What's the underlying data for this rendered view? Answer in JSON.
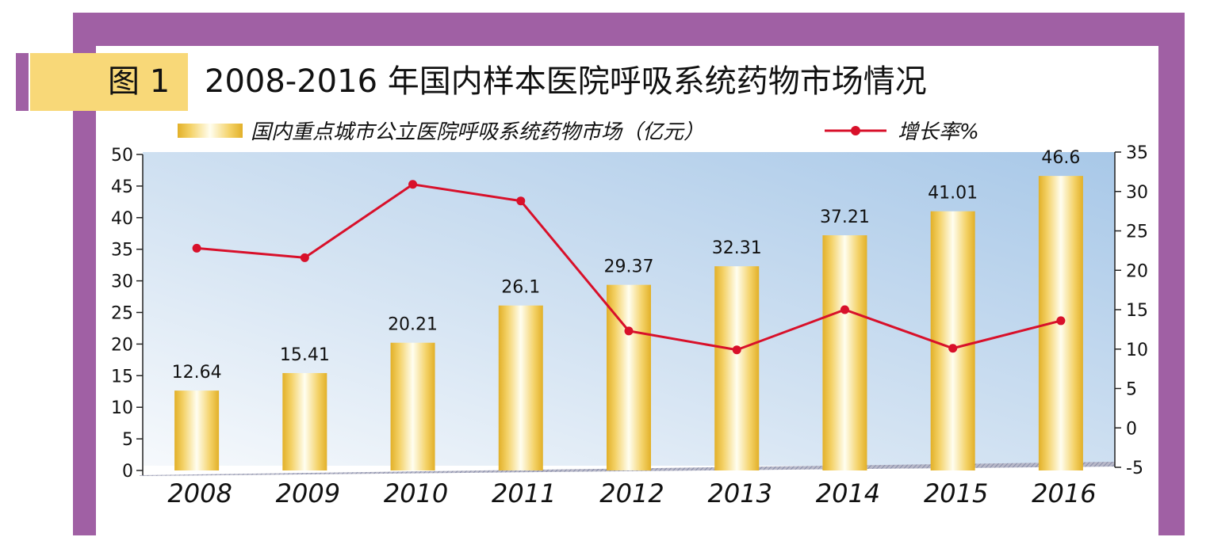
{
  "figure": {
    "label": "图 1",
    "title": "2008-2016 年国内样本医院呼吸系统药物市场情况"
  },
  "colors": {
    "frame": "#a060a4",
    "tag": "#f8d878",
    "bar_gold": "#e8b830",
    "line": "#d8102a",
    "plot_bg_top": "#a8c8e8",
    "plot_bg_bottom": "#f4f8fc"
  },
  "chart_data": {
    "type": "bar+line",
    "categories": [
      "2008",
      "2009",
      "2010",
      "2011",
      "2012",
      "2013",
      "2014",
      "2015",
      "2016"
    ],
    "series": [
      {
        "name": "国内重点城市公立医院呼吸系统药物市场（亿元）",
        "type": "bar",
        "axis": "left",
        "values": [
          12.64,
          15.41,
          20.21,
          26.1,
          29.37,
          32.31,
          37.21,
          41.01,
          46.6
        ],
        "labels": [
          "12.64",
          "15.41",
          "20.21",
          "26.1",
          "29.37",
          "32.31",
          "37.21",
          "41.01",
          "46.6"
        ]
      },
      {
        "name": "增长率%",
        "type": "line",
        "axis": "right",
        "values": [
          22.8,
          21.6,
          30.9,
          28.8,
          12.3,
          9.9,
          15.0,
          10.1,
          13.6
        ]
      }
    ],
    "y_left": {
      "range": [
        0,
        50
      ],
      "ticks": [
        "0",
        "5",
        "10",
        "15",
        "20",
        "25",
        "30",
        "35",
        "40",
        "45",
        "50"
      ]
    },
    "y_right": {
      "range": [
        -5,
        35
      ],
      "ticks": [
        "-5",
        "0",
        "5",
        "10",
        "15",
        "20",
        "25",
        "30",
        "35"
      ]
    },
    "legend_position": "top",
    "grid": false
  }
}
